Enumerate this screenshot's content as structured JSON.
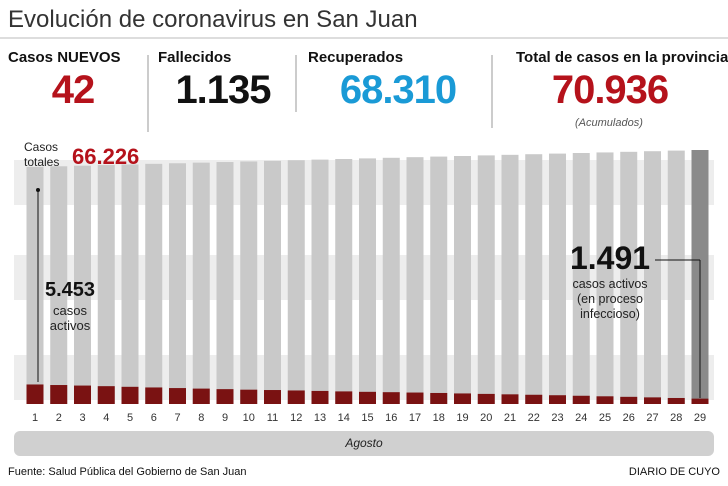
{
  "header": {
    "title": "Evolución de coronavirus en San Juan"
  },
  "stats": [
    {
      "label": "Casos NUEVOS",
      "value": "42",
      "color": "#b5121b"
    },
    {
      "label": "Fallecidos",
      "value": "1.135",
      "color": "#111111"
    },
    {
      "label": "Recuperados",
      "value": "68.310",
      "color": "#1a9ad6"
    },
    {
      "label": "Total de casos en la provincia",
      "value": "70.936",
      "color": "#b5121b",
      "note": "(Acumulados)"
    }
  ],
  "chart_data": {
    "type": "bar",
    "categories": [
      "1",
      "2",
      "3",
      "4",
      "5",
      "6",
      "7",
      "8",
      "9",
      "10",
      "11",
      "12",
      "13",
      "14",
      "15",
      "16",
      "17",
      "18",
      "19",
      "20",
      "21",
      "22",
      "23",
      "24",
      "25",
      "26",
      "27",
      "28",
      "29"
    ],
    "xlabel": "Agosto",
    "series": [
      {
        "name": "Casos totales",
        "color": "#c9c9c9",
        "last_color": "#8a8a8a",
        "values": [
          66226,
          66390,
          66560,
          66730,
          66900,
          67070,
          67240,
          67400,
          67570,
          67740,
          67910,
          68080,
          68250,
          68420,
          68590,
          68760,
          68930,
          69100,
          69260,
          69430,
          69590,
          69760,
          69930,
          70100,
          70260,
          70430,
          70600,
          70770,
          70936
        ],
        "value_labels": [
          "66.226",
          null,
          null,
          null,
          null,
          null,
          null,
          null,
          null,
          null,
          null,
          null,
          null,
          null,
          null,
          null,
          null,
          null,
          null,
          null,
          null,
          null,
          null,
          null,
          null,
          null,
          null,
          null,
          null
        ]
      },
      {
        "name": "casos activos",
        "color": "#7a1212",
        "values": [
          5453,
          5300,
          5150,
          4980,
          4800,
          4620,
          4450,
          4300,
          4150,
          4000,
          3900,
          3780,
          3650,
          3520,
          3400,
          3300,
          3200,
          3080,
          2950,
          2820,
          2700,
          2580,
          2450,
          2300,
          2150,
          2000,
          1850,
          1680,
          1491
        ],
        "value_labels": [
          "5.453",
          null,
          null,
          null,
          null,
          null,
          null,
          null,
          null,
          null,
          null,
          null,
          null,
          null,
          null,
          null,
          null,
          null,
          null,
          null,
          null,
          null,
          null,
          null,
          null,
          null,
          null,
          null,
          "1.491"
        ]
      }
    ],
    "annotation": "casos activos (en proceso infeccioso)"
  },
  "footer": {
    "source": "Fuente: Salud Pública del Gobierno de San Juan",
    "brand": "DIARIO DE CUYO"
  }
}
